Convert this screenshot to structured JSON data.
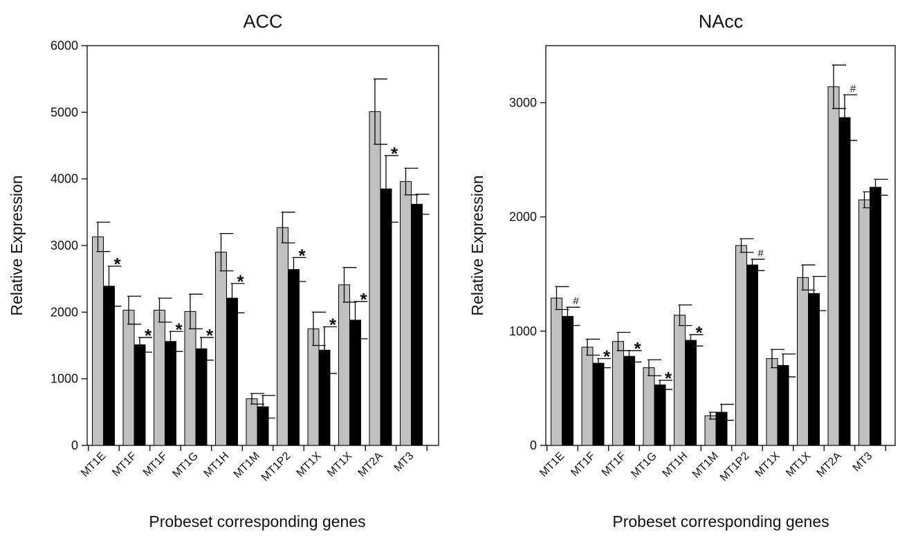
{
  "chart_data": [
    {
      "type": "bar",
      "title": "ACC",
      "xlabel": "Probeset corresponding genes",
      "ylabel": "Relative Expression",
      "ylim": [
        0,
        6000
      ],
      "yticks": [
        0,
        1000,
        2000,
        3000,
        4000,
        5000,
        6000
      ],
      "categories": [
        "MT1E",
        "MT1F",
        "MT1F",
        "MT1G",
        "MT1H",
        "MT1M",
        "MT1P2",
        "MT1X",
        "MT1X",
        "MT2A",
        "MT3"
      ],
      "series": [
        {
          "color": "#c0c0c0",
          "values": [
            3130,
            2030,
            2030,
            2010,
            2900,
            700,
            3270,
            1750,
            2410,
            5010,
            3960
          ],
          "errors": [
            220,
            210,
            180,
            260,
            280,
            80,
            230,
            250,
            260,
            490,
            200
          ]
        },
        {
          "color": "#000000",
          "values": [
            2390,
            1510,
            1560,
            1450,
            2210,
            580,
            2640,
            1430,
            1880,
            3850,
            3620
          ],
          "errors": [
            300,
            110,
            150,
            170,
            220,
            170,
            180,
            350,
            280,
            500,
            150
          ]
        }
      ],
      "annotations": [
        "*",
        "*",
        "*",
        "*",
        "*",
        "",
        "*",
        "*",
        "*",
        "*",
        ""
      ],
      "grid": false,
      "legend": "none"
    },
    {
      "type": "bar",
      "title": "NAcc",
      "xlabel": "Probeset corresponding genes",
      "ylabel": "Relative Expression",
      "ylim": [
        0,
        3500
      ],
      "yticks": [
        0,
        1000,
        2000,
        3000
      ],
      "categories": [
        "MT1E",
        "MT1F",
        "MT1F",
        "MT1G",
        "MT1H",
        "MT1M",
        "MT1P2",
        "MT1X",
        "MT1X",
        "MT2A",
        "MT3"
      ],
      "series": [
        {
          "color": "#c0c0c0",
          "values": [
            1290,
            860,
            910,
            680,
            1140,
            260,
            1750,
            760,
            1470,
            3140,
            2150
          ],
          "errors": [
            100,
            70,
            80,
            70,
            90,
            30,
            60,
            80,
            110,
            190,
            70
          ]
        },
        {
          "color": "#000000",
          "values": [
            1130,
            720,
            780,
            530,
            920,
            290,
            1580,
            700,
            1330,
            2870,
            2260
          ],
          "errors": [
            80,
            40,
            50,
            40,
            50,
            70,
            50,
            100,
            150,
            200,
            70
          ]
        }
      ],
      "annotations": [
        "#",
        "*",
        "*",
        "*",
        "*",
        "",
        "#",
        "",
        "",
        "#",
        ""
      ],
      "grid": false,
      "legend": "none"
    }
  ]
}
